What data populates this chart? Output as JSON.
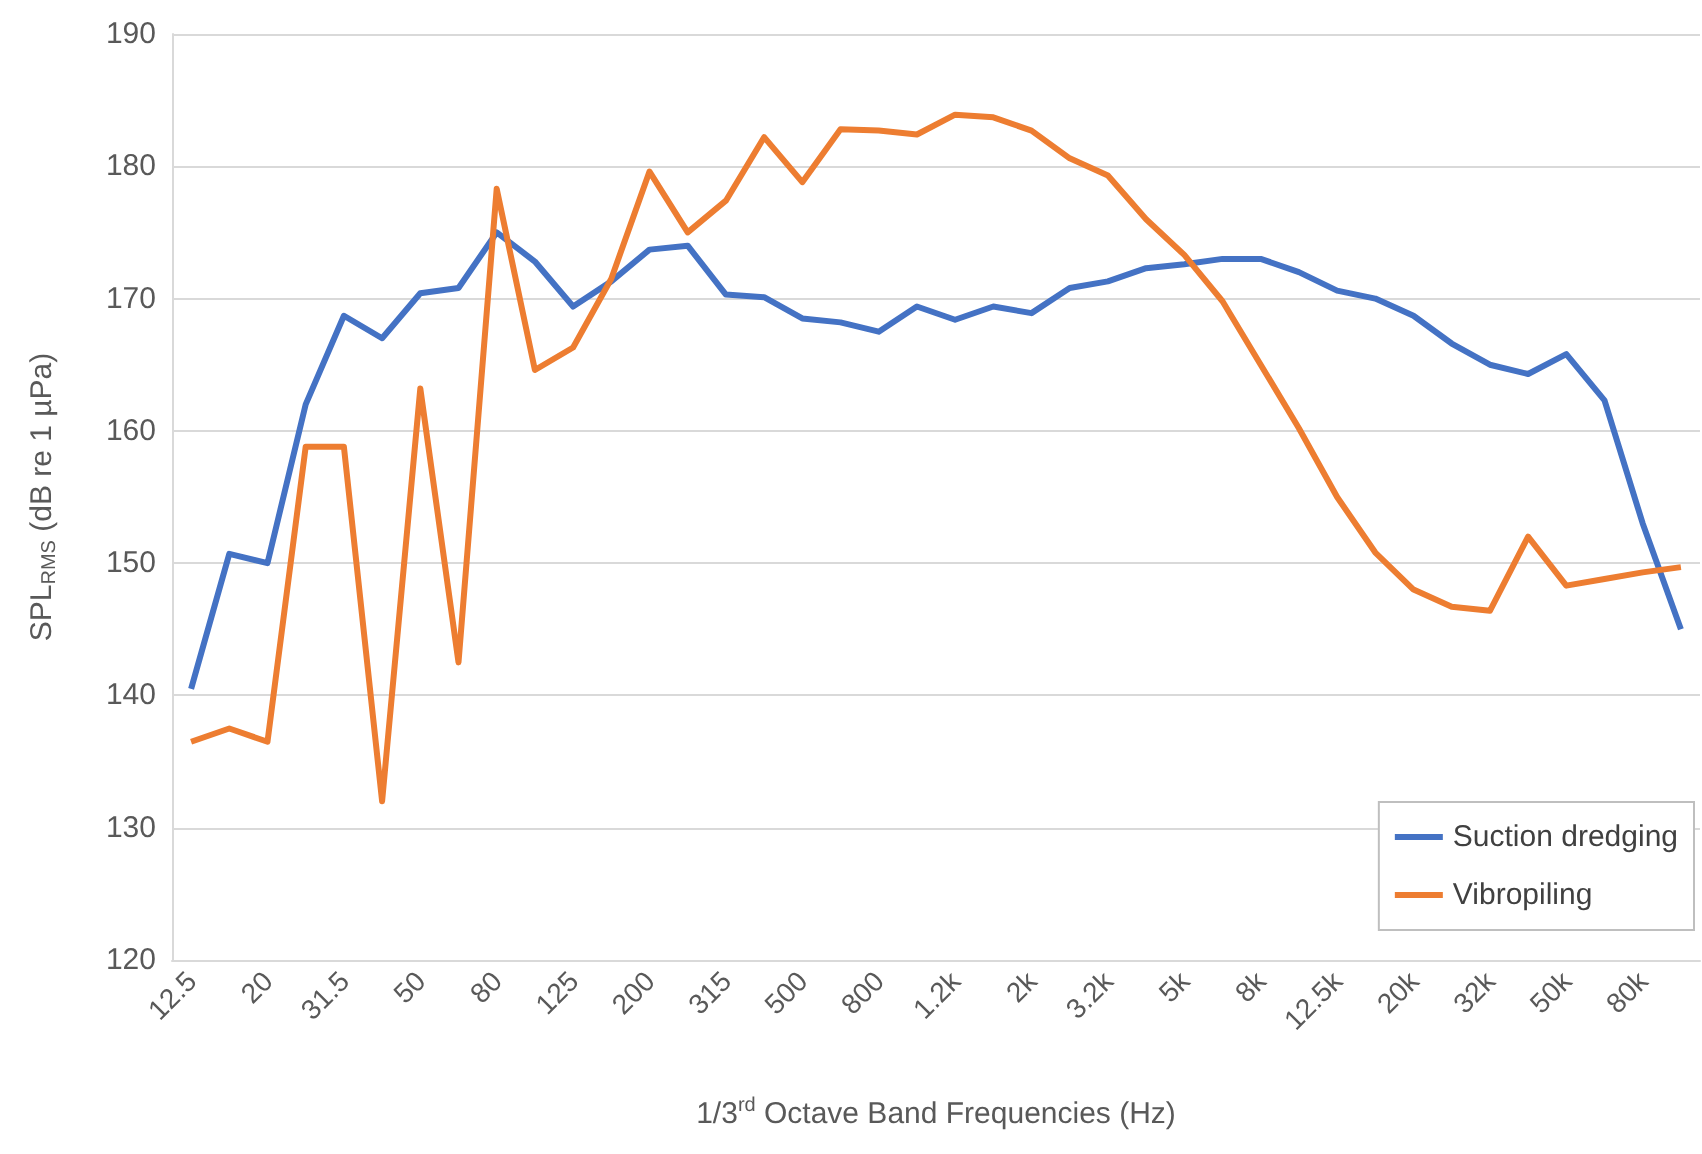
{
  "chart_data": {
    "type": "line",
    "xlabel": "1/3$^{rd}$ Octave Band Frequencies (Hz)",
    "ylabel": "SPL$_{RMS}$ (dB re 1 µPa)",
    "categories": [
      "12.5",
      null,
      "20",
      null,
      "31.5",
      null,
      "50",
      null,
      "80",
      null,
      "125",
      null,
      "200",
      null,
      "315",
      null,
      "500",
      null,
      "800",
      null,
      "1.2k",
      null,
      "2k",
      null,
      "3.2k",
      null,
      "5k",
      null,
      "8k",
      null,
      "12.5k",
      null,
      "20k",
      null,
      "32k",
      null,
      "50k",
      null,
      "80k",
      null
    ],
    "series": [
      {
        "name": "Suction dredging",
        "color": "#4472c4",
        "values": [
          140.5,
          150.7,
          150,
          162,
          168.7,
          167,
          170.4,
          170.8,
          175,
          172.8,
          169.4,
          171.3,
          173.7,
          174,
          170.3,
          170.1,
          168.5,
          168.2,
          167.5,
          169.4,
          168.4,
          169.4,
          168.9,
          170.8,
          171.3,
          172.3,
          172.6,
          173,
          173,
          172,
          170.6,
          170,
          168.7,
          166.6,
          165,
          164.3,
          165.8,
          162.3,
          153,
          145
        ]
      },
      {
        "name": "Vibropiling",
        "color": "#ed7d31",
        "values": [
          136.5,
          137.5,
          136.5,
          158.8,
          158.8,
          132,
          163.2,
          142.5,
          178.3,
          164.6,
          166.3,
          171.5,
          179.6,
          175,
          177.4,
          182.2,
          178.8,
          182.8,
          182.7,
          182.4,
          183.9,
          183.7,
          182.7,
          180.6,
          179.3,
          176,
          173.3,
          169.8,
          165,
          160.2,
          155,
          150.8,
          148,
          146.7,
          146.4,
          152,
          148.3,
          148.8,
          149.3,
          149.7
        ]
      }
    ],
    "ylim": [
      120,
      190
    ],
    "yticks": [
      120,
      130,
      140,
      150,
      160,
      170,
      180,
      190
    ],
    "grid": "y",
    "legend": "bottom right",
    "marker": "none",
    "line_style": "solid"
  }
}
